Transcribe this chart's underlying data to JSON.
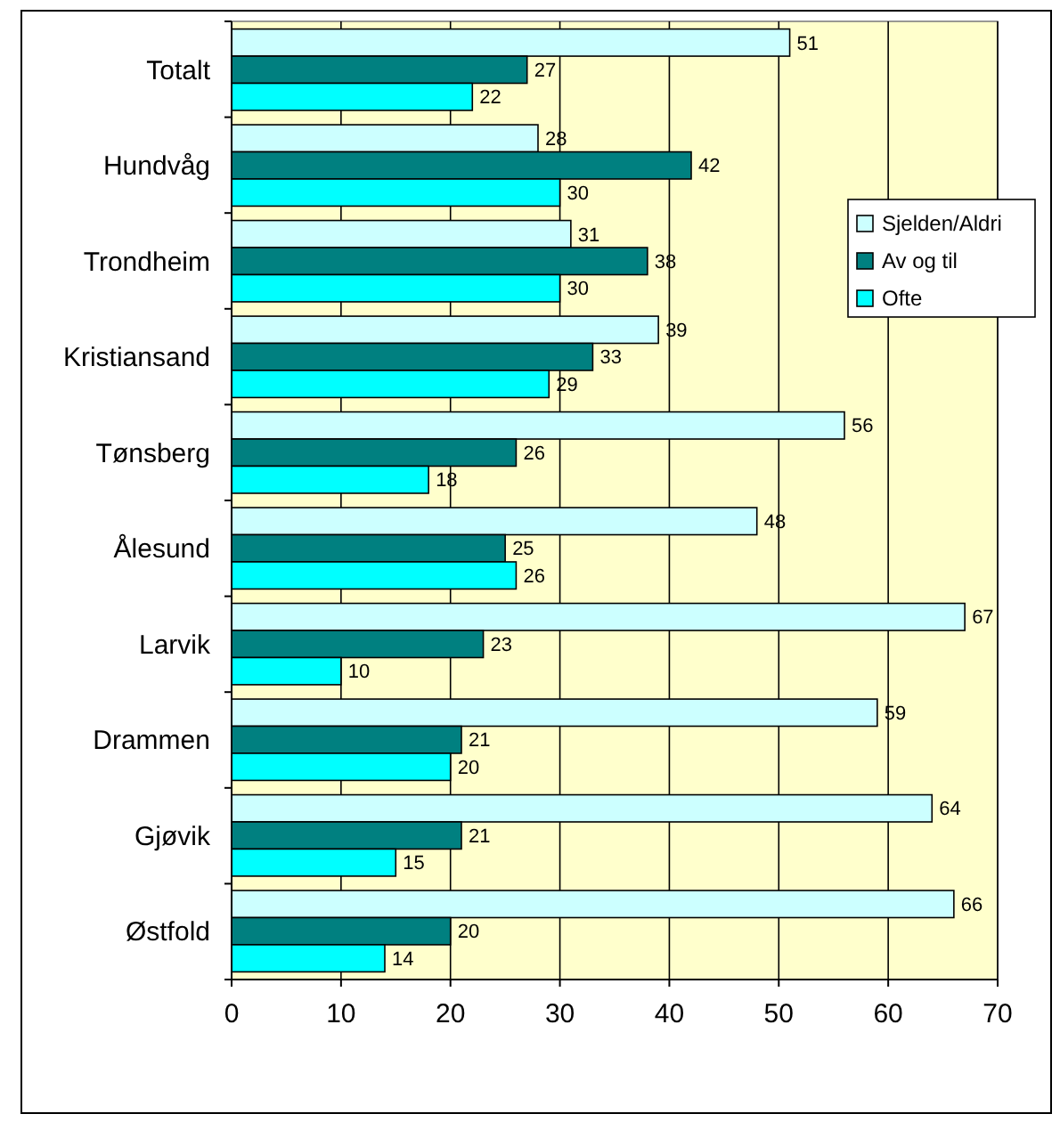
{
  "chart_data": {
    "type": "bar",
    "orientation": "horizontal",
    "categories": [
      "Totalt",
      "Hundvåg",
      "Trondheim",
      "Kristiansand",
      "Tønsberg",
      "Ålesund",
      "Larvik",
      "Drammen",
      "Gjøvik",
      "Østfold"
    ],
    "series": [
      {
        "name": "Sjelden/Aldri",
        "color": "#ccffff",
        "values": [
          51,
          28,
          31,
          39,
          56,
          48,
          67,
          59,
          64,
          66
        ]
      },
      {
        "name": "Av og til",
        "color": "#008080",
        "values": [
          27,
          42,
          38,
          33,
          26,
          25,
          23,
          21,
          21,
          20
        ]
      },
      {
        "name": "Ofte",
        "color": "#00ffff",
        "values": [
          22,
          30,
          30,
          29,
          18,
          26,
          10,
          20,
          15,
          14
        ]
      }
    ],
    "xlim": [
      0,
      70
    ],
    "xticks": [
      0,
      10,
      20,
      30,
      40,
      50,
      60,
      70
    ],
    "grid": "x",
    "legend": "right",
    "data_labels": true
  }
}
